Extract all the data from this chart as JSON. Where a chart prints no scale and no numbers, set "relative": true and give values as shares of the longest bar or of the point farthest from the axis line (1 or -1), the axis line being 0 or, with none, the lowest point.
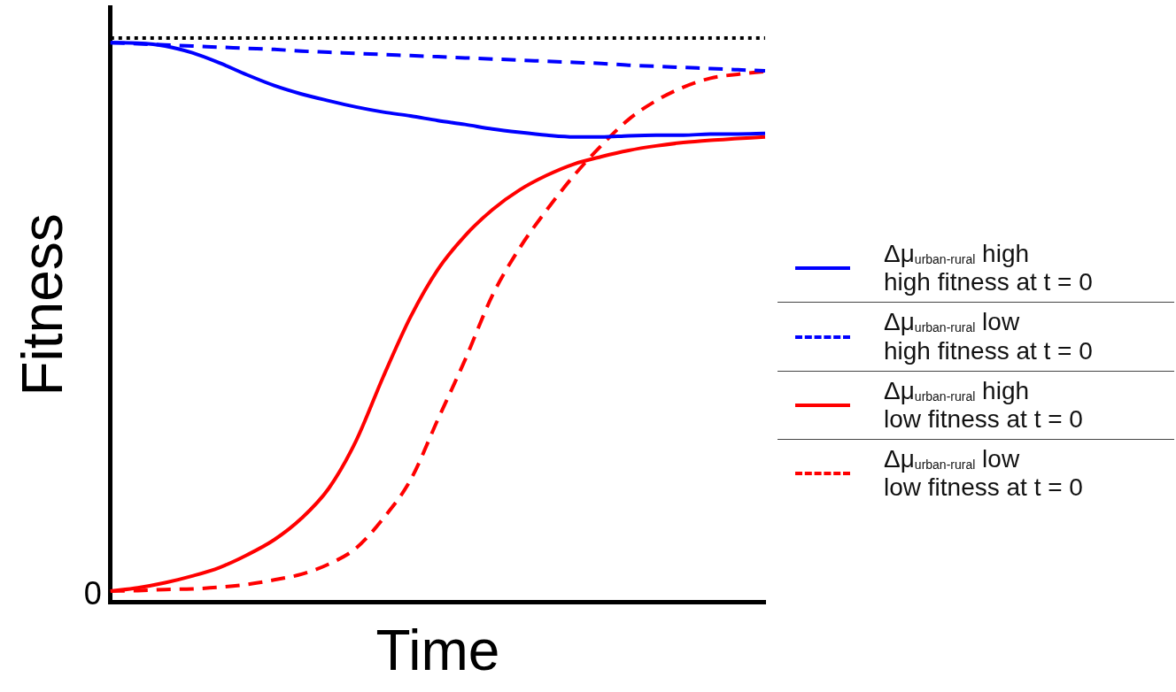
{
  "chart_data": {
    "type": "line",
    "relative": true,
    "xlabel": "Time",
    "ylabel": "Fitness",
    "legend": "right",
    "grid": false,
    "marker": "none",
    "categories": [
      null,
      null,
      null,
      null,
      null,
      null,
      null,
      null,
      null,
      null,
      null,
      null,
      null,
      null,
      null,
      null,
      null,
      null,
      null,
      null,
      null,
      null,
      null,
      null,
      null
    ],
    "annotations": [
      "0"
    ],
    "series": [
      {
        "name": "Δμ$_{urban-rural}$ high\nhigh fitness at t = 0",
        "color": "#0000ff",
        "line_style": "solid",
        "values": [
          0.992,
          0.991,
          0.986,
          0.974,
          0.956,
          0.935,
          0.916,
          0.901,
          0.889,
          0.878,
          0.869,
          0.862,
          0.854,
          0.847,
          0.839,
          0.833,
          0.828,
          0.825,
          0.825,
          0.827,
          0.828,
          0.828,
          0.83,
          0.83,
          0.831
        ]
      },
      {
        "name": "Δμ$_{urban-rural}$ low\nhigh fitness at t = 0",
        "color": "#0000ff",
        "line_style": "dashed",
        "values": [
          0.992,
          0.99,
          0.988,
          0.986,
          0.984,
          0.982,
          0.98,
          0.977,
          0.975,
          0.973,
          0.971,
          0.969,
          0.967,
          0.965,
          0.963,
          0.961,
          0.959,
          0.957,
          0.955,
          0.952,
          0.95,
          0.948,
          0.946,
          0.944,
          0.942
        ]
      },
      {
        "name": "Δμ$_{urban-rural}$ high\nlow fitness at t = 0",
        "color": "#ff0000",
        "line_style": "solid",
        "values": [
          0.02,
          0.026,
          0.035,
          0.047,
          0.062,
          0.084,
          0.111,
          0.149,
          0.202,
          0.286,
          0.4,
          0.506,
          0.59,
          0.65,
          0.696,
          0.731,
          0.757,
          0.777,
          0.79,
          0.801,
          0.809,
          0.815,
          0.819,
          0.822,
          0.825
        ]
      },
      {
        "name": "Δμ$_{urban-rural}$ low\nlow fitness at t = 0",
        "color": "#ff0000",
        "line_style": "dashed",
        "values": [
          0.02,
          0.021,
          0.023,
          0.024,
          0.027,
          0.032,
          0.04,
          0.05,
          0.068,
          0.096,
          0.149,
          0.217,
          0.324,
          0.43,
          0.544,
          0.628,
          0.696,
          0.757,
          0.81,
          0.856,
          0.889,
          0.913,
          0.929,
          0.936,
          0.941
        ]
      },
      {
        "color": "#000000",
        "line_style": "dotted",
        "values": [
          1,
          1,
          1,
          1,
          1,
          1,
          1,
          1,
          1,
          1,
          1,
          1,
          1,
          1,
          1,
          1,
          1,
          1,
          1,
          1,
          1,
          1,
          1,
          1,
          1
        ]
      }
    ]
  }
}
